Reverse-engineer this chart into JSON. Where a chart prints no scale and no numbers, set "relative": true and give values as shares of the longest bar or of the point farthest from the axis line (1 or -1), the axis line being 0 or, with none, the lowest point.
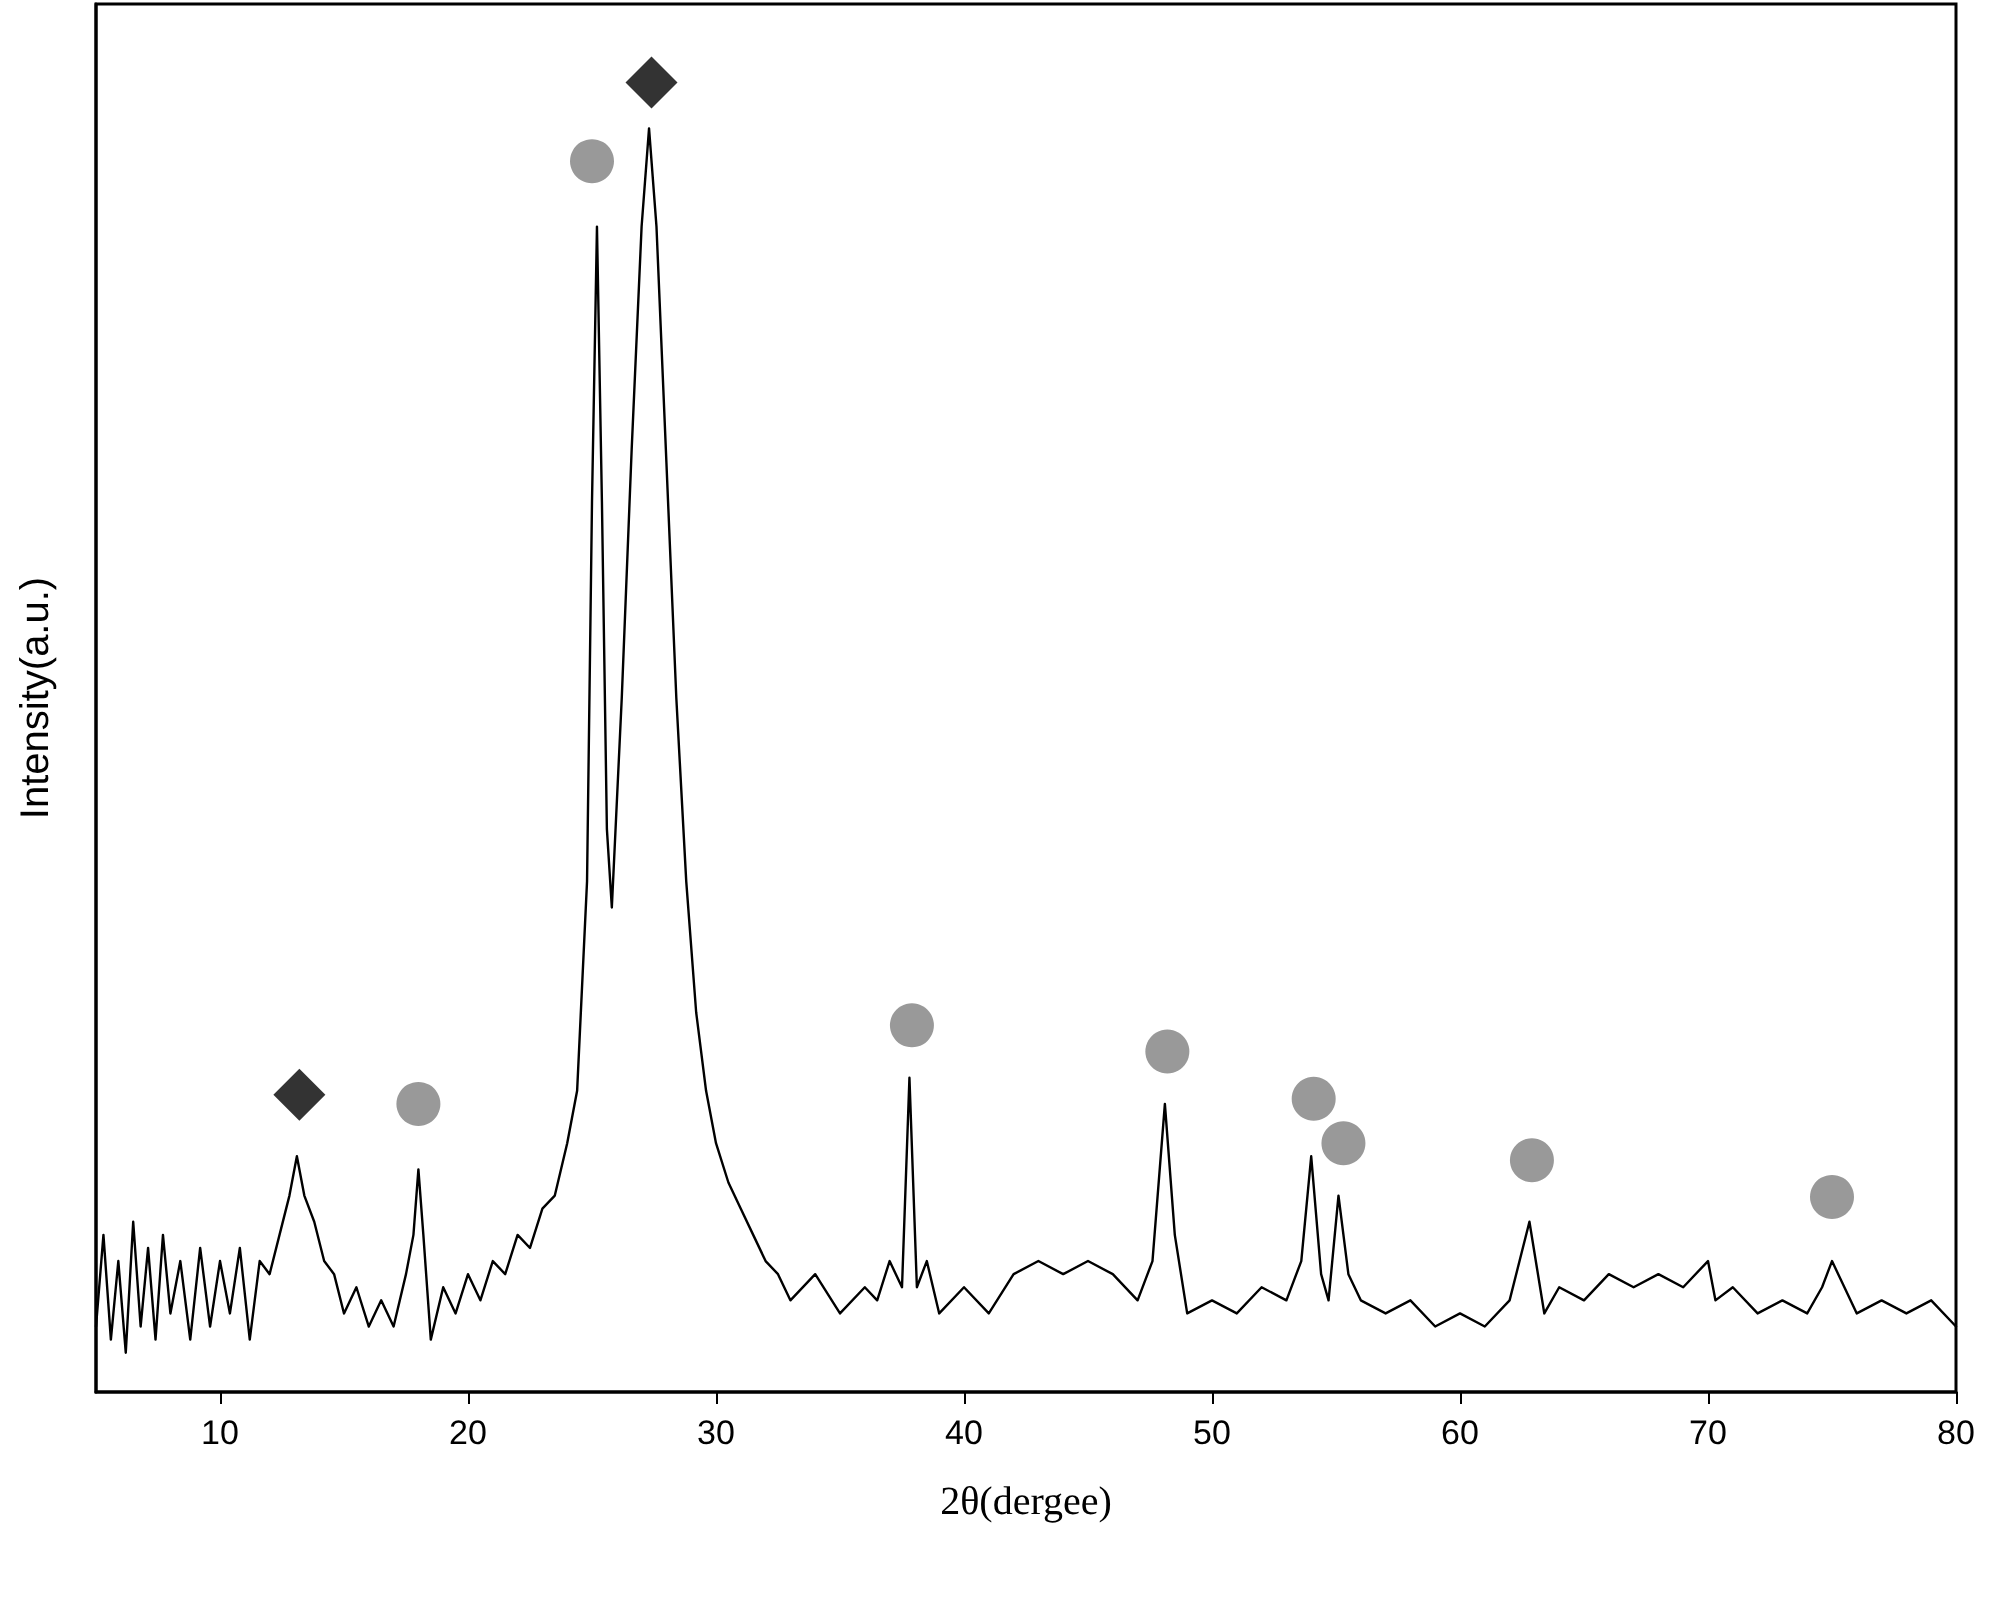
{
  "chart_data": {
    "type": "line",
    "relative": true,
    "xlabel": "2θ(dergee)",
    "ylabel": "Intensity(a.u.)",
    "xlim": [
      5,
      80
    ],
    "xticks": [
      10,
      20,
      30,
      40,
      50,
      60,
      70,
      80
    ],
    "tick_labels": "x",
    "series": [
      {
        "color": "#000000",
        "marker": "none",
        "line_style": "solid",
        "x": [
          5,
          5.3,
          5.6,
          5.9,
          6.2,
          6.5,
          6.8,
          7.1,
          7.4,
          7.7,
          8,
          8.4,
          8.8,
          9.2,
          9.6,
          10,
          10.4,
          10.8,
          11.2,
          11.6,
          12,
          12.4,
          12.8,
          13.1,
          13.4,
          13.8,
          14.2,
          14.6,
          15,
          15.5,
          16,
          16.5,
          17,
          17.5,
          17.8,
          18,
          18.2,
          18.5,
          19,
          19.5,
          20,
          20.5,
          21,
          21.5,
          22,
          22.5,
          23,
          23.5,
          24,
          24.4,
          24.8,
          25.0,
          25.2,
          25.4,
          25.6,
          25.8,
          26.2,
          26.6,
          27,
          27.3,
          27.6,
          28,
          28.4,
          28.8,
          29.2,
          29.6,
          30,
          30.5,
          31,
          31.5,
          32,
          32.5,
          33,
          34,
          35,
          36,
          36.5,
          37,
          37.5,
          37.8,
          38.1,
          38.5,
          39,
          40,
          41,
          42,
          43,
          44,
          45,
          46,
          47,
          47.6,
          48.1,
          48.5,
          49,
          50,
          51,
          52,
          53,
          53.6,
          54,
          54.4,
          54.7,
          55.1,
          55.5,
          56,
          57,
          58,
          59,
          60,
          61,
          62,
          62.8,
          63.4,
          64,
          65,
          66,
          67,
          68,
          69,
          70,
          70.3,
          71,
          72,
          73,
          74,
          74.6,
          75,
          75.5,
          76,
          77,
          78,
          79,
          80
        ],
        "values": [
          0.05,
          0.12,
          0.04,
          0.1,
          0.03,
          0.13,
          0.05,
          0.11,
          0.04,
          0.12,
          0.06,
          0.1,
          0.04,
          0.11,
          0.05,
          0.1,
          0.06,
          0.11,
          0.04,
          0.1,
          0.09,
          0.12,
          0.15,
          0.18,
          0.15,
          0.13,
          0.1,
          0.09,
          0.06,
          0.08,
          0.05,
          0.07,
          0.05,
          0.09,
          0.12,
          0.17,
          0.12,
          0.04,
          0.08,
          0.06,
          0.09,
          0.07,
          0.1,
          0.09,
          0.12,
          0.11,
          0.14,
          0.15,
          0.19,
          0.23,
          0.39,
          0.68,
          0.89,
          0.68,
          0.43,
          0.37,
          0.53,
          0.72,
          0.89,
          0.965,
          0.89,
          0.71,
          0.53,
          0.39,
          0.29,
          0.23,
          0.19,
          0.16,
          0.14,
          0.12,
          0.1,
          0.09,
          0.07,
          0.09,
          0.06,
          0.08,
          0.07,
          0.1,
          0.08,
          0.24,
          0.08,
          0.1,
          0.06,
          0.08,
          0.06,
          0.09,
          0.1,
          0.09,
          0.1,
          0.09,
          0.07,
          0.1,
          0.22,
          0.12,
          0.06,
          0.07,
          0.06,
          0.08,
          0.07,
          0.1,
          0.18,
          0.09,
          0.07,
          0.15,
          0.09,
          0.07,
          0.06,
          0.07,
          0.05,
          0.06,
          0.05,
          0.07,
          0.13,
          0.06,
          0.08,
          0.07,
          0.09,
          0.08,
          0.09,
          0.08,
          0.1,
          0.07,
          0.08,
          0.06,
          0.07,
          0.06,
          0.08,
          0.1,
          0.08,
          0.06,
          0.07,
          0.06,
          0.07,
          0.05
        ]
      },
      {
        "type": "scatter",
        "color": "#000000",
        "marker": "diamond",
        "x": [
          13.2,
          27.4
        ],
        "values": [
          0.227,
          1
        ]
      },
      {
        "type": "scatter",
        "color": "#808080",
        "marker": "circle",
        "x": [
          18.0,
          25.0,
          37.9,
          48.2,
          54.1,
          55.3,
          62.9,
          75.0
        ],
        "values": [
          0.22,
          0.94,
          0.28,
          0.26,
          0.224,
          0.19,
          0.177,
          0.149
        ]
      }
    ]
  }
}
